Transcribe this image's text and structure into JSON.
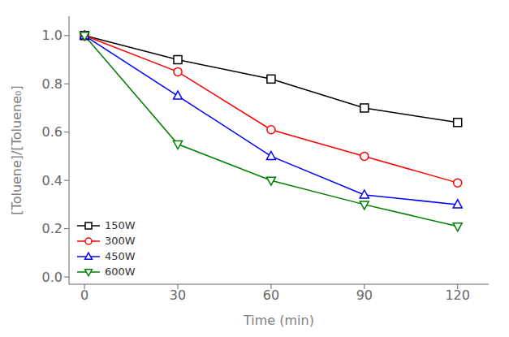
{
  "chart_data": {
    "type": "line",
    "xlabel": "Time (min)",
    "ylabel": "[Toluene]/[Toluene₀]",
    "x": [
      0,
      30,
      60,
      90,
      120
    ],
    "series": [
      {
        "name": "150W",
        "color": "#000000",
        "marker": "square",
        "line_style": "solid",
        "values": [
          1.0,
          0.9,
          0.82,
          0.7,
          0.64
        ]
      },
      {
        "name": "300W",
        "color": "#ff0000",
        "marker": "circle",
        "line_style": "solid",
        "values": [
          1.0,
          0.85,
          0.61,
          0.5,
          0.39
        ]
      },
      {
        "name": "450W",
        "color": "#0000ff",
        "marker": "triangle-up",
        "line_style": "solid",
        "values": [
          1.0,
          0.75,
          0.5,
          0.34,
          0.3
        ]
      },
      {
        "name": "600W",
        "color": "#008000",
        "marker": "triangle-down",
        "line_style": "solid",
        "values": [
          1.0,
          0.55,
          0.4,
          0.3,
          0.21
        ]
      }
    ],
    "xlim": [
      -5,
      130
    ],
    "ylim": [
      -0.03,
      1.08
    ],
    "xticks": [
      0,
      30,
      60,
      90,
      120
    ],
    "yticks": [
      {
        "value": 0.0,
        "label": "0.0"
      },
      0.2,
      0.4,
      0.6,
      0.8,
      {
        "value": 1.0,
        "label": "1.0"
      }
    ],
    "legend": "lower left",
    "grid": false
  }
}
